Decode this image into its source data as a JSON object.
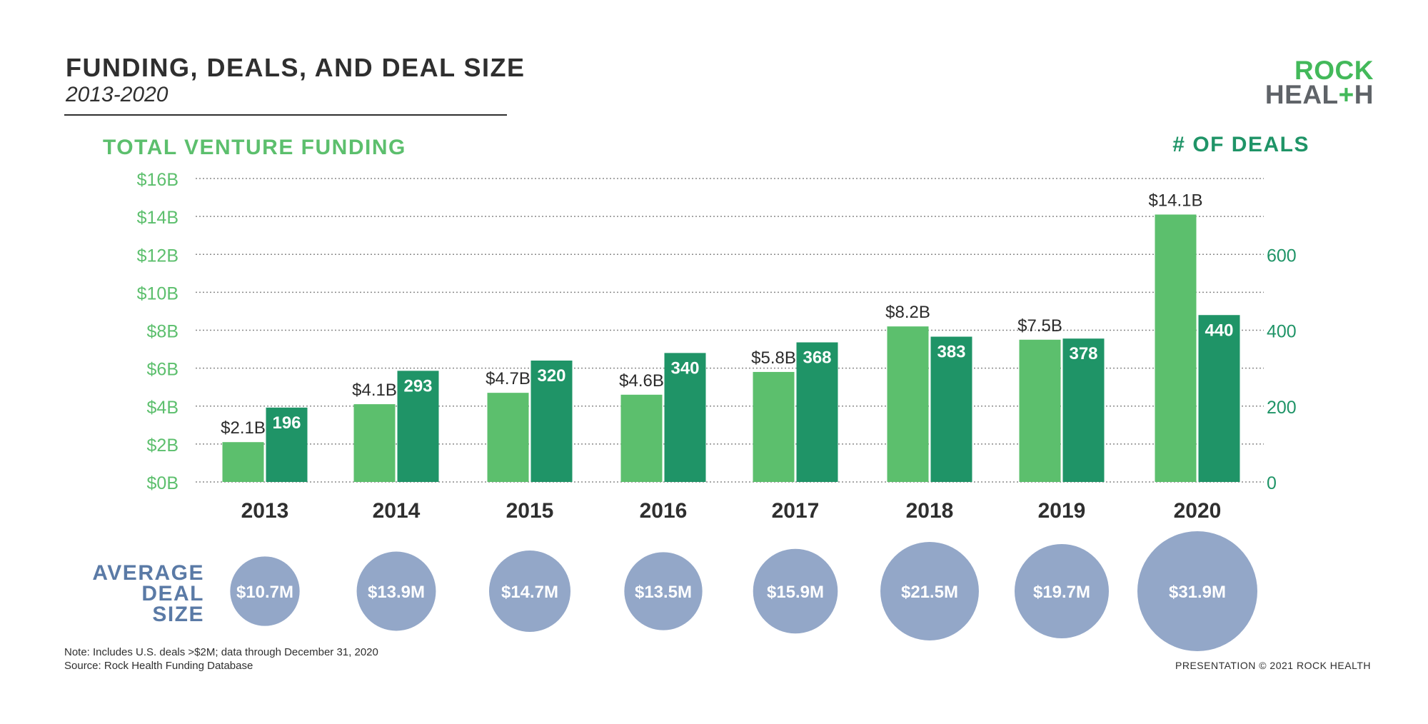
{
  "header": {
    "title": "FUNDING, DEALS, AND DEAL SIZE",
    "subtitle": "2013-2020"
  },
  "logo": {
    "line1": "ROCK",
    "line2_a": "HEAL",
    "line2_plus": "+",
    "line2_b": "H"
  },
  "labels": {
    "funding_axis": "TOTAL VENTURE FUNDING",
    "deals_axis": "# OF DEALS",
    "avg_deal_size": [
      "AVERAGE",
      "DEAL",
      "SIZE"
    ]
  },
  "footer": {
    "note": "Note: Includes U.S. deals >$2M; data through December 31, 2020",
    "source": "Source: Rock Health Funding Database",
    "copyright": "PRESENTATION © 2021 ROCK HEALTH"
  },
  "colors": {
    "funding": "#5cbf6d",
    "deals": "#1f9467",
    "bubble": "#93a7c8",
    "axis_funding": "#5cbf6d",
    "axis_deals": "#1f9467",
    "year": "#2f2f2f"
  },
  "chart_data": {
    "type": "bar",
    "categories": [
      "2013",
      "2014",
      "2015",
      "2016",
      "2017",
      "2018",
      "2019",
      "2020"
    ],
    "series": [
      {
        "name": "TOTAL VENTURE FUNDING",
        "axis": "left",
        "values": [
          2.1,
          4.1,
          4.7,
          4.6,
          5.8,
          8.2,
          7.5,
          14.1
        ],
        "labels": [
          "$2.1B",
          "$4.1B",
          "$4.7B",
          "$4.6B",
          "$5.8B",
          "$8.2B",
          "$7.5B",
          "$14.1B"
        ]
      },
      {
        "name": "# OF DEALS",
        "axis": "right",
        "values": [
          196,
          293,
          320,
          340,
          368,
          383,
          378,
          440
        ],
        "labels": [
          "196",
          "293",
          "320",
          "340",
          "368",
          "383",
          "378",
          "440"
        ]
      }
    ],
    "bubbles": {
      "name": "AVERAGE DEAL SIZE",
      "values": [
        10.7,
        13.9,
        14.7,
        13.5,
        15.9,
        21.5,
        19.7,
        31.9
      ],
      "labels": [
        "$10.7M",
        "$13.9M",
        "$14.7M",
        "$13.5M",
        "$15.9M",
        "$21.5M",
        "$19.7M",
        "$31.9M"
      ]
    },
    "left_axis": {
      "ylim": [
        0,
        16
      ],
      "ticks": [
        0,
        2,
        4,
        6,
        8,
        10,
        12,
        14,
        16
      ],
      "tick_labels": [
        "$0B",
        "$2B",
        "$4B",
        "$6B",
        "$8B",
        "$10B",
        "$12B",
        "$14B",
        "$16B"
      ]
    },
    "right_axis": {
      "ylim": [
        0,
        800
      ],
      "ticks": [
        0,
        200,
        400,
        600
      ],
      "tick_labels": [
        "0",
        "200",
        "400",
        "600"
      ]
    },
    "grid": true
  }
}
